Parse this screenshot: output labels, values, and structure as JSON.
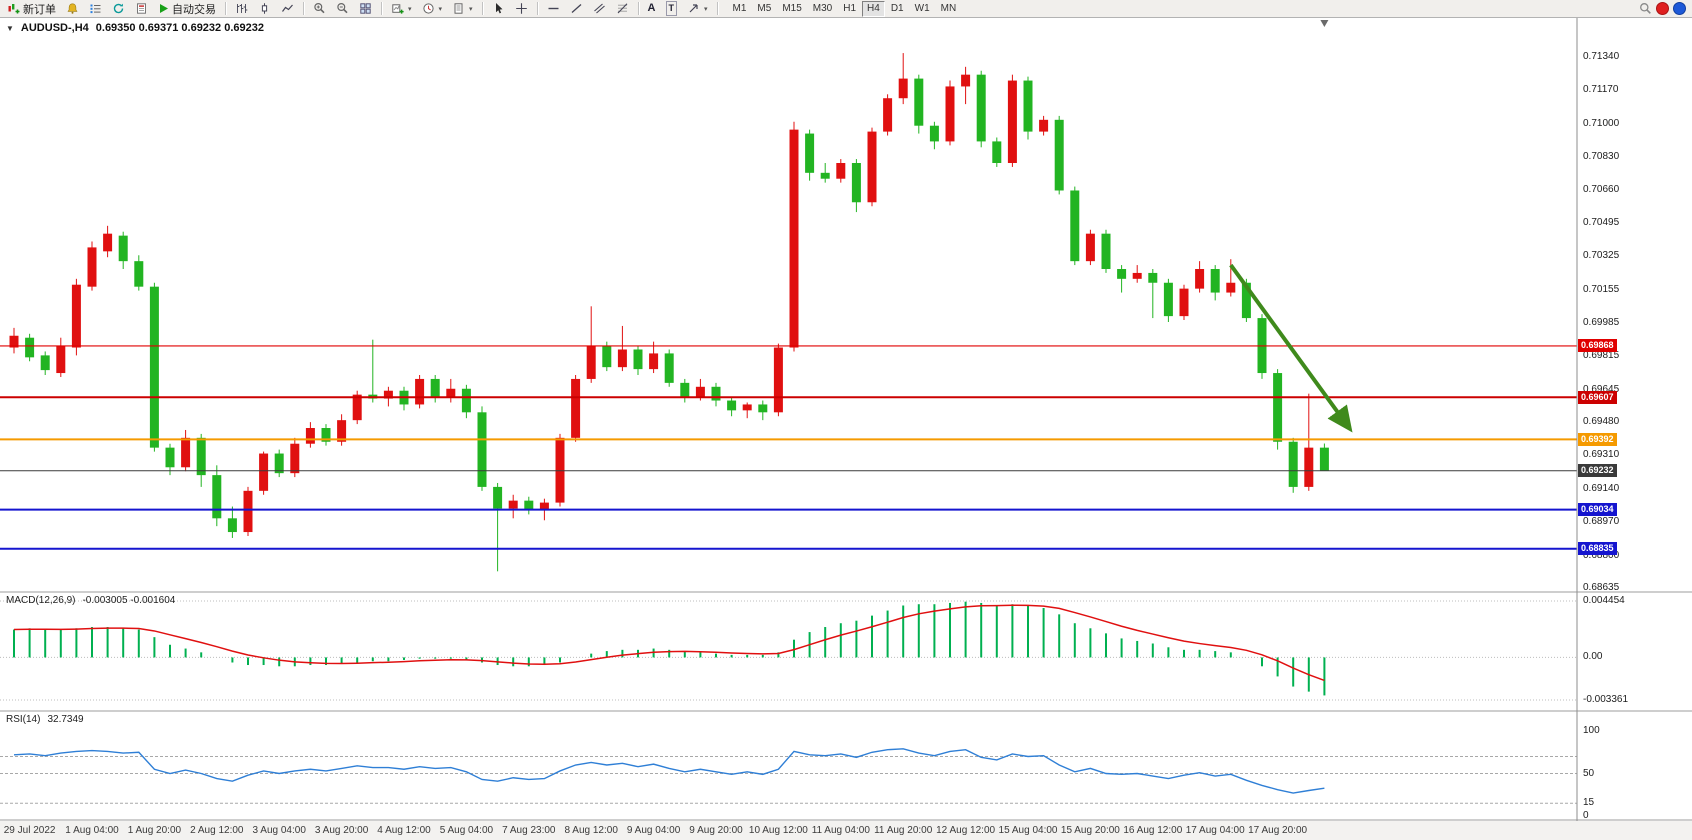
{
  "toolbar": {
    "new_order": "新订单",
    "autotrading": "自动交易",
    "text_tool": "A",
    "label_tool": "T",
    "timeframes": [
      "M1",
      "M5",
      "M15",
      "M30",
      "H1",
      "H4",
      "D1",
      "W1",
      "MN"
    ],
    "active_timeframe": "H4"
  },
  "chart_header": {
    "symbol": "AUDUSD-,H4",
    "ohlc": "0.69350 0.69371 0.69232 0.69232"
  },
  "panels": {
    "macd": {
      "title": "MACD(12,26,9)",
      "values": "-0.003005 -0.001604",
      "axis_labels": [
        "0.004454",
        "0.00",
        "-0.003361"
      ]
    },
    "rsi": {
      "title": "RSI(14)",
      "value": "32.7349",
      "axis_labels": [
        "100",
        "50",
        "15",
        "0"
      ]
    }
  },
  "price_axis": {
    "labels": [
      "0.71340",
      "0.71170",
      "0.71000",
      "0.70830",
      "0.70660",
      "0.70495",
      "0.70325",
      "0.70155",
      "0.69985",
      "0.69815",
      "0.69645",
      "0.69480",
      "0.69310",
      "0.69140",
      "0.68970",
      "0.68800",
      "0.68635"
    ]
  },
  "time_axis": {
    "labels": [
      "29 Jul 2022",
      "1 Aug 04:00",
      "1 Aug 20:00",
      "2 Aug 12:00",
      "3 Aug 04:00",
      "3 Aug 20:00",
      "4 Aug 12:00",
      "5 Aug 04:00",
      "7 Aug 23:00",
      "8 Aug 12:00",
      "9 Aug 04:00",
      "9 Aug 20:00",
      "10 Aug 12:00",
      "11 Aug 04:00",
      "11 Aug 20:00",
      "12 Aug 12:00",
      "15 Aug 04:00",
      "15 Aug 20:00",
      "16 Aug 12:00",
      "17 Aug 04:00",
      "17 Aug 20:00"
    ]
  },
  "chart_data": {
    "type": "candlestick",
    "symbol_period": "AUDUSD-,H4",
    "price_range": [
      0.68635,
      0.7134
    ],
    "up_color": "#e01010",
    "down_color": "#22b422",
    "candles": [
      [
        0.6986,
        0.6996,
        0.6983,
        0.6992
      ],
      [
        0.6991,
        0.6993,
        0.6979,
        0.6981
      ],
      [
        0.6982,
        0.6984,
        0.6972,
        0.69745
      ],
      [
        0.6973,
        0.6991,
        0.6971,
        0.6987
      ],
      [
        0.6986,
        0.7021,
        0.6982,
        0.7018
      ],
      [
        0.7017,
        0.704,
        0.7015,
        0.7037
      ],
      [
        0.7035,
        0.7048,
        0.7032,
        0.7044
      ],
      [
        0.7043,
        0.7045,
        0.7026,
        0.703
      ],
      [
        0.703,
        0.7033,
        0.7015,
        0.7017
      ],
      [
        0.7017,
        0.7019,
        0.6933,
        0.6935
      ],
      [
        0.6935,
        0.6937,
        0.6921,
        0.6925
      ],
      [
        0.6925,
        0.6944,
        0.6923,
        0.694
      ],
      [
        0.694,
        0.6942,
        0.6915,
        0.6921
      ],
      [
        0.6921,
        0.6926,
        0.6895,
        0.6899
      ],
      [
        0.6899,
        0.6905,
        0.6889,
        0.6892
      ],
      [
        0.6892,
        0.6915,
        0.689,
        0.6913
      ],
      [
        0.6913,
        0.6933,
        0.6911,
        0.6932
      ],
      [
        0.6932,
        0.6934,
        0.692,
        0.6922
      ],
      [
        0.6922,
        0.694,
        0.692,
        0.6937
      ],
      [
        0.6937,
        0.6948,
        0.6935,
        0.6945
      ],
      [
        0.6945,
        0.6947,
        0.6936,
        0.6938
      ],
      [
        0.6938,
        0.6952,
        0.6936,
        0.6949
      ],
      [
        0.6949,
        0.6964,
        0.6947,
        0.6962
      ],
      [
        0.6962,
        0.699,
        0.6958,
        0.696
      ],
      [
        0.696,
        0.6966,
        0.6956,
        0.6964
      ],
      [
        0.6964,
        0.6966,
        0.6954,
        0.6957
      ],
      [
        0.6957,
        0.6972,
        0.6955,
        0.697
      ],
      [
        0.697,
        0.6972,
        0.6958,
        0.6961
      ],
      [
        0.6961,
        0.697,
        0.6958,
        0.6965
      ],
      [
        0.6965,
        0.6967,
        0.695,
        0.6953
      ],
      [
        0.6953,
        0.6956,
        0.6913,
        0.6915
      ],
      [
        0.6915,
        0.6917,
        0.6872,
        0.6904
      ],
      [
        0.6904,
        0.6911,
        0.6899,
        0.6908
      ],
      [
        0.6908,
        0.691,
        0.6901,
        0.6903
      ],
      [
        0.6903,
        0.6909,
        0.6898,
        0.6907
      ],
      [
        0.6907,
        0.6942,
        0.6905,
        0.694
      ],
      [
        0.694,
        0.6972,
        0.6938,
        0.697
      ],
      [
        0.697,
        0.7007,
        0.6968,
        0.6987
      ],
      [
        0.6987,
        0.6989,
        0.6974,
        0.6976
      ],
      [
        0.6976,
        0.6997,
        0.6974,
        0.6985
      ],
      [
        0.6985,
        0.6987,
        0.6972,
        0.6975
      ],
      [
        0.6975,
        0.6989,
        0.6973,
        0.6983
      ],
      [
        0.6983,
        0.6985,
        0.6966,
        0.6968
      ],
      [
        0.6968,
        0.697,
        0.6958,
        0.6961
      ],
      [
        0.6961,
        0.697,
        0.6959,
        0.6966
      ],
      [
        0.6966,
        0.6968,
        0.6956,
        0.6959
      ],
      [
        0.6959,
        0.6961,
        0.6951,
        0.6954
      ],
      [
        0.6954,
        0.6958,
        0.695,
        0.6957
      ],
      [
        0.6957,
        0.6959,
        0.6949,
        0.6953
      ],
      [
        0.6953,
        0.6988,
        0.6951,
        0.6986
      ],
      [
        0.6986,
        0.7101,
        0.6984,
        0.7097
      ],
      [
        0.7095,
        0.7097,
        0.7071,
        0.7075
      ],
      [
        0.7075,
        0.708,
        0.707,
        0.7072
      ],
      [
        0.7072,
        0.7082,
        0.707,
        0.708
      ],
      [
        0.708,
        0.7082,
        0.7055,
        0.706
      ],
      [
        0.706,
        0.7098,
        0.7058,
        0.7096
      ],
      [
        0.7096,
        0.7115,
        0.7094,
        0.7113
      ],
      [
        0.7113,
        0.7136,
        0.711,
        0.7123
      ],
      [
        0.7123,
        0.7125,
        0.7095,
        0.7099
      ],
      [
        0.7099,
        0.7101,
        0.7087,
        0.7091
      ],
      [
        0.7091,
        0.7122,
        0.7089,
        0.7119
      ],
      [
        0.7119,
        0.7129,
        0.711,
        0.7125
      ],
      [
        0.7125,
        0.7127,
        0.7088,
        0.7091
      ],
      [
        0.7091,
        0.7093,
        0.7078,
        0.708
      ],
      [
        0.708,
        0.7125,
        0.7078,
        0.7122
      ],
      [
        0.7122,
        0.7124,
        0.7092,
        0.7096
      ],
      [
        0.7096,
        0.7104,
        0.7094,
        0.7102
      ],
      [
        0.7102,
        0.7104,
        0.7064,
        0.7066
      ],
      [
        0.7066,
        0.7068,
        0.7028,
        0.703
      ],
      [
        0.703,
        0.7046,
        0.7028,
        0.7044
      ],
      [
        0.7044,
        0.7046,
        0.7024,
        0.7026
      ],
      [
        0.7026,
        0.7028,
        0.7014,
        0.7021
      ],
      [
        0.7021,
        0.7028,
        0.7019,
        0.7024
      ],
      [
        0.7024,
        0.7026,
        0.7001,
        0.7019
      ],
      [
        0.7019,
        0.7021,
        0.6999,
        0.7002
      ],
      [
        0.7002,
        0.7018,
        0.7,
        0.7016
      ],
      [
        0.7016,
        0.703,
        0.7014,
        0.7026
      ],
      [
        0.7026,
        0.7028,
        0.701,
        0.7014
      ],
      [
        0.7014,
        0.7031,
        0.7012,
        0.7019
      ],
      [
        0.7019,
        0.7021,
        0.6999,
        0.7001
      ],
      [
        0.7001,
        0.7003,
        0.697,
        0.6973
      ],
      [
        0.6973,
        0.6975,
        0.6934,
        0.6938
      ],
      [
        0.6938,
        0.694,
        0.6912,
        0.6915
      ],
      [
        0.6915,
        0.69625,
        0.6913,
        0.6935
      ],
      [
        0.6935,
        0.69371,
        0.69232,
        0.69232
      ]
    ],
    "hlines": [
      {
        "value": 0.69868,
        "label": "0.69868",
        "color": "#e00000",
        "width": 1.2
      },
      {
        "value": 0.69607,
        "label": "0.69607",
        "color": "#cc0000",
        "width": 2
      },
      {
        "value": 0.69392,
        "label": "0.69392",
        "color": "#f59a00",
        "width": 2
      },
      {
        "value": 0.69232,
        "label": "0.69232",
        "color": "#3a3a3a",
        "width": 1
      },
      {
        "value": 0.69034,
        "label": "0.69034",
        "color": "#1515cf",
        "width": 2
      },
      {
        "value": 0.68835,
        "label": "0.68835",
        "color": "#1515cf",
        "width": 2
      }
    ],
    "arrow": {
      "start_index": 78,
      "start_price": 0.7028,
      "end_index": 85.5,
      "end_price": 0.6946,
      "color": "#3f8a1c"
    },
    "macd": {
      "range": [
        -0.003361,
        0.004454
      ],
      "histogram_color": "#00b050",
      "signal_color": "#e01010",
      "histogram": [
        0.0022,
        0.0023,
        0.0022,
        0.0022,
        0.0023,
        0.0024,
        0.0024,
        0.0023,
        0.0022,
        0.0016,
        0.001,
        0.0007,
        0.0004,
        0.0,
        -0.0004,
        -0.0006,
        -0.0006,
        -0.0007,
        -0.0007,
        -0.0006,
        -0.0006,
        -0.0005,
        -0.0004,
        -0.0003,
        -0.0003,
        -0.0002,
        -0.0001,
        -0.0001,
        -0.0001,
        -0.0002,
        -0.0004,
        -0.0006,
        -0.0007,
        -0.0007,
        -0.0006,
        -0.0004,
        0.0,
        0.0003,
        0.0005,
        0.0006,
        0.0006,
        0.0007,
        0.0006,
        0.0005,
        0.0004,
        0.0003,
        0.0002,
        0.0002,
        0.0002,
        0.0004,
        0.0014,
        0.002,
        0.0024,
        0.0027,
        0.0029,
        0.0033,
        0.0037,
        0.0041,
        0.0042,
        0.0042,
        0.0043,
        0.0044,
        0.0043,
        0.0041,
        0.0042,
        0.0041,
        0.0039,
        0.0034,
        0.0027,
        0.0023,
        0.0019,
        0.0015,
        0.0013,
        0.0011,
        0.0008,
        0.0006,
        0.0006,
        0.0005,
        0.0004,
        0.0,
        -0.0007,
        -0.0015,
        -0.0023,
        -0.0027,
        -0.003
      ]
    },
    "rsi": {
      "range": [
        0,
        100
      ],
      "color": "#2f7fd6",
      "levels": [
        70,
        50,
        15
      ],
      "series": [
        72,
        73,
        71,
        74,
        76,
        77,
        76,
        74,
        75,
        55,
        50,
        54,
        50,
        44,
        41,
        48,
        53,
        50,
        53,
        55,
        53,
        56,
        59,
        57,
        57,
        55,
        58,
        56,
        57,
        52,
        43,
        41,
        45,
        43,
        44,
        53,
        60,
        63,
        60,
        62,
        58,
        61,
        56,
        52,
        55,
        52,
        49,
        52,
        49,
        55,
        76,
        72,
        71,
        73,
        69,
        75,
        78,
        79,
        74,
        71,
        76,
        78,
        69,
        66,
        73,
        70,
        71,
        60,
        52,
        56,
        50,
        49,
        50,
        47,
        44,
        48,
        51,
        47,
        49,
        42,
        36,
        31,
        27,
        30,
        32.7
      ]
    }
  }
}
